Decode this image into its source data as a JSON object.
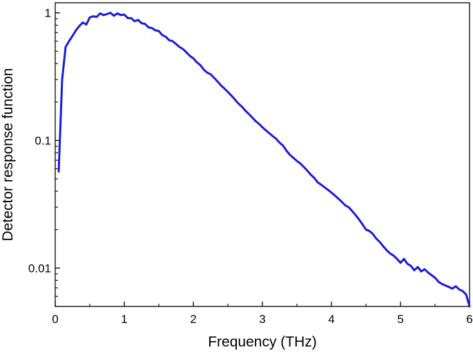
{
  "chart_data": {
    "type": "line",
    "title": "",
    "xlabel": "Frequency (THz)",
    "ylabel": "Detector response function",
    "xlim": [
      0,
      6
    ],
    "ylim": [
      0.005,
      1.2
    ],
    "yscale": "log",
    "grid": false,
    "legend": "none",
    "x_ticks": [
      {
        "value": 0,
        "label": "0"
      },
      {
        "value": 1,
        "label": "1"
      },
      {
        "value": 2,
        "label": "2"
      },
      {
        "value": 3,
        "label": "3"
      },
      {
        "value": 4,
        "label": "4"
      },
      {
        "value": 5,
        "label": "5"
      },
      {
        "value": 6,
        "label": "6"
      }
    ],
    "y_ticks": [
      {
        "value": 0.01,
        "label": "0.01"
      },
      {
        "value": 0.1,
        "label": "0.1"
      },
      {
        "value": 1,
        "label": "1"
      }
    ],
    "series": [
      {
        "color": "#1a1adb",
        "x": [
          0.05,
          0.1,
          0.15,
          0.2,
          0.25,
          0.3,
          0.35,
          0.4,
          0.45,
          0.5,
          0.55,
          0.6,
          0.65,
          0.7,
          0.75,
          0.8,
          0.85,
          0.9,
          0.95,
          1.0,
          1.05,
          1.1,
          1.15,
          1.2,
          1.25,
          1.3,
          1.35,
          1.4,
          1.45,
          1.5,
          1.55,
          1.6,
          1.65,
          1.7,
          1.75,
          1.8,
          1.85,
          1.9,
          1.95,
          2.0,
          2.05,
          2.1,
          2.15,
          2.2,
          2.25,
          2.3,
          2.35,
          2.4,
          2.45,
          2.5,
          2.55,
          2.6,
          2.65,
          2.7,
          2.75,
          2.8,
          2.85,
          2.9,
          2.95,
          3.0,
          3.05,
          3.1,
          3.15,
          3.2,
          3.25,
          3.3,
          3.35,
          3.4,
          3.45,
          3.5,
          3.55,
          3.6,
          3.65,
          3.7,
          3.75,
          3.8,
          3.85,
          3.9,
          3.95,
          4.0,
          4.05,
          4.1,
          4.15,
          4.2,
          4.25,
          4.3,
          4.35,
          4.4,
          4.45,
          4.5,
          4.55,
          4.6,
          4.65,
          4.7,
          4.75,
          4.8,
          4.85,
          4.9,
          4.95,
          5.0,
          5.05,
          5.1,
          5.15,
          5.2,
          5.25,
          5.3,
          5.35,
          5.4,
          5.45,
          5.5,
          5.55,
          5.6,
          5.65,
          5.7,
          5.75,
          5.8,
          5.85,
          5.9,
          5.95,
          6.0
        ],
        "y": [
          0.057,
          0.3,
          0.54,
          0.6,
          0.66,
          0.73,
          0.79,
          0.84,
          0.81,
          0.92,
          0.94,
          0.93,
          0.99,
          0.96,
          0.98,
          1.0,
          0.95,
          0.99,
          0.96,
          0.97,
          0.91,
          0.91,
          0.86,
          0.88,
          0.83,
          0.82,
          0.77,
          0.76,
          0.73,
          0.72,
          0.67,
          0.65,
          0.61,
          0.6,
          0.57,
          0.54,
          0.52,
          0.49,
          0.46,
          0.44,
          0.41,
          0.39,
          0.36,
          0.34,
          0.33,
          0.31,
          0.29,
          0.27,
          0.255,
          0.24,
          0.225,
          0.21,
          0.195,
          0.185,
          0.172,
          0.162,
          0.152,
          0.142,
          0.135,
          0.127,
          0.12,
          0.114,
          0.108,
          0.103,
          0.096,
          0.091,
          0.083,
          0.077,
          0.073,
          0.069,
          0.066,
          0.062,
          0.058,
          0.054,
          0.051,
          0.047,
          0.045,
          0.043,
          0.041,
          0.039,
          0.037,
          0.035,
          0.033,
          0.031,
          0.03,
          0.028,
          0.026,
          0.024,
          0.022,
          0.02,
          0.0195,
          0.0185,
          0.017,
          0.016,
          0.0148,
          0.0138,
          0.013,
          0.0125,
          0.0118,
          0.011,
          0.0118,
          0.0108,
          0.0104,
          0.0096,
          0.0102,
          0.0094,
          0.0098,
          0.0092,
          0.0088,
          0.0084,
          0.0078,
          0.0075,
          0.0073,
          0.0071,
          0.0069,
          0.0072,
          0.0068,
          0.0066,
          0.0062,
          0.005
        ]
      }
    ]
  }
}
